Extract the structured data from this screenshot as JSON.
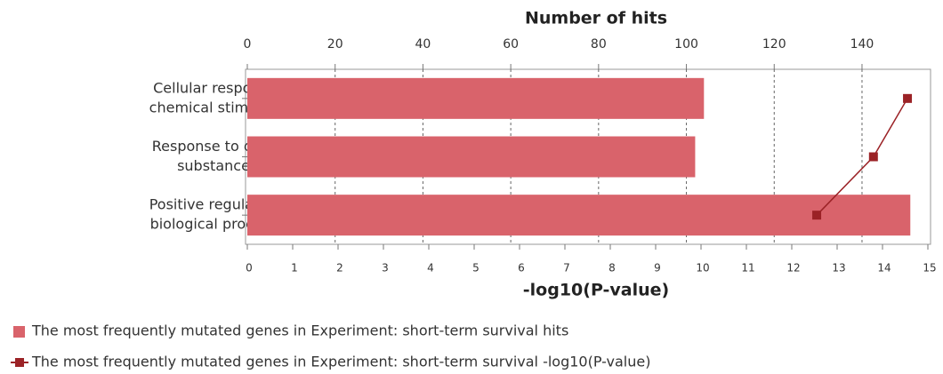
{
  "chart_data": {
    "type": "bar",
    "orientation": "horizontal",
    "xlabel": "Number of hits",
    "x2label": "-log10(P-value)",
    "categories": [
      [
        "Cellular response to",
        "chemical stimulus"
      ],
      [
        "Response to organic",
        "substance"
      ],
      [
        "Positive regulation of",
        "biological process"
      ]
    ],
    "series": [
      {
        "name": "The most frequently mutated genes in Experiment: short-term survival hits",
        "type": "bar",
        "color": "#d9636b",
        "axis": "x",
        "values": [
          104,
          102,
          151
        ]
      },
      {
        "name": "The most frequently mutated genes in Experiment: short-term survival -log10(P-value)",
        "type": "line",
        "color": "#9b2226",
        "axis": "x2",
        "values": [
          14.55,
          13.8,
          12.55
        ]
      }
    ],
    "xlim": [
      0,
      155
    ],
    "xticks": [
      0,
      20,
      40,
      60,
      80,
      100,
      120,
      140
    ],
    "x2lim": [
      0,
      15
    ],
    "x2ticks": [
      0,
      1,
      2,
      3,
      4,
      5,
      6,
      7,
      8,
      9,
      10,
      11,
      12,
      13,
      14,
      15
    ],
    "grid": true
  }
}
